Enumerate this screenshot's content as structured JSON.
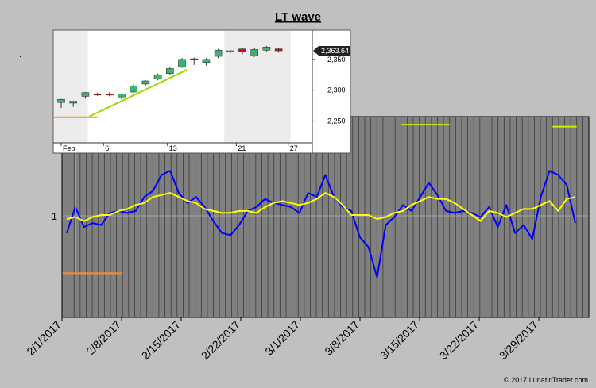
{
  "chart_data": [
    {
      "type": "line",
      "title": "LT wave",
      "x_tick_labels": [
        "2/1/2017",
        "2/8/2017",
        "2/15/2017",
        "2/22/2017",
        "3/1/2017",
        "3/8/2017",
        "3/15/2017",
        "3/22/2017",
        "3/29/2017"
      ],
      "y_tick_labels": [
        "1"
      ],
      "series": [
        {
          "color": "#0000ff",
          "values": [
            0.42,
            0.55,
            0.45,
            0.47,
            0.46,
            0.52,
            0.53,
            0.52,
            0.53,
            0.6,
            0.63,
            0.71,
            0.73,
            0.62,
            0.57,
            0.6,
            0.55,
            0.48,
            0.42,
            0.41,
            0.46,
            0.53,
            0.55,
            0.59,
            0.57,
            0.56,
            0.55,
            0.52,
            0.62,
            0.6,
            0.71,
            0.6,
            0.55,
            0.53,
            0.4,
            0.35,
            0.2,
            0.46,
            0.5,
            0.56,
            0.53,
            0.6,
            0.67,
            0.61,
            0.53,
            0.52,
            0.53,
            0.52,
            0.5,
            0.55,
            0.45,
            0.56,
            0.42,
            0.46,
            0.39,
            0.6,
            0.73,
            0.71,
            0.66,
            0.47
          ]
        },
        {
          "color": "#ffff00",
          "values": [
            0.49,
            0.5,
            0.48,
            0.5,
            0.51,
            0.51,
            0.53,
            0.54,
            0.56,
            0.57,
            0.6,
            0.61,
            0.62,
            0.6,
            0.58,
            0.57,
            0.54,
            0.53,
            0.52,
            0.52,
            0.53,
            0.53,
            0.52,
            0.55,
            0.57,
            0.58,
            0.57,
            0.56,
            0.57,
            0.59,
            0.62,
            0.6,
            0.56,
            0.51,
            0.51,
            0.51,
            0.49,
            0.5,
            0.52,
            0.53,
            0.56,
            0.58,
            0.6,
            0.59,
            0.59,
            0.57,
            0.54,
            0.51,
            0.48,
            0.53,
            0.52,
            0.5,
            0.52,
            0.54,
            0.54,
            0.56,
            0.58,
            0.53,
            0.59,
            0.6
          ]
        }
      ],
      "annotations": [
        {
          "kind": "hline",
          "color": "#ccee00",
          "x_start": 12,
          "x_end": 23,
          "y": 0.9
        },
        {
          "kind": "hline",
          "color": "#ccee00",
          "x_start": 36,
          "x_end": 42,
          "y": 0.91
        },
        {
          "kind": "hline",
          "color": "#ccee00",
          "x_start": 56,
          "x_end": 64,
          "y": 0.96
        },
        {
          "kind": "hline",
          "color": "#ccee00",
          "x_start": 81,
          "x_end": 85,
          "y": 0.95
        },
        {
          "kind": "hline",
          "color": "#ff8c2a",
          "x_start": 0,
          "x_end": 10,
          "y": 0.22
        },
        {
          "kind": "hline",
          "color": "#e6c000",
          "x_start": 43,
          "x_end": 54,
          "y": 0.0
        },
        {
          "kind": "hline",
          "color": "#e6c000",
          "x_start": 62,
          "x_end": 78,
          "y": 0.0
        }
      ],
      "grid": true,
      "background": "#808080"
    },
    {
      "type": "candlestick",
      "x_tick_labels": [
        "Feb",
        "6",
        "13",
        "21",
        "27"
      ],
      "y_tick_labels": [
        "2,350",
        "2,300",
        "2,250"
      ],
      "ylim": [
        2217,
        2395
      ],
      "last_price_label": "2,363.64",
      "up_color": "#3cb371",
      "down_color": "#dd1111",
      "candles": [
        {
          "open": 2280,
          "high": 2286,
          "low": 2271,
          "close": 2285
        },
        {
          "open": 2279,
          "high": 2282,
          "low": 2273,
          "close": 2282
        },
        {
          "open": 2290,
          "high": 2297,
          "low": 2286,
          "close": 2296
        },
        {
          "open": 2294,
          "high": 2296,
          "low": 2291,
          "close": 2293
        },
        {
          "open": 2294,
          "high": 2297,
          "low": 2290,
          "close": 2292
        },
        {
          "open": 2289,
          "high": 2295,
          "low": 2285,
          "close": 2294
        },
        {
          "open": 2297,
          "high": 2310,
          "low": 2295,
          "close": 2307
        },
        {
          "open": 2310,
          "high": 2316,
          "low": 2308,
          "close": 2315
        },
        {
          "open": 2318,
          "high": 2327,
          "low": 2316,
          "close": 2325
        },
        {
          "open": 2327,
          "high": 2337,
          "low": 2325,
          "close": 2335
        },
        {
          "open": 2338,
          "high": 2352,
          "low": 2336,
          "close": 2350
        },
        {
          "open": 2351,
          "high": 2353,
          "low": 2341,
          "close": 2349
        },
        {
          "open": 2345,
          "high": 2352,
          "low": 2340,
          "close": 2350
        },
        {
          "open": 2355,
          "high": 2367,
          "low": 2352,
          "close": 2365
        },
        {
          "open": 2362,
          "high": 2365,
          "low": 2360,
          "close": 2364
        },
        {
          "open": 2367,
          "high": 2369,
          "low": 2358,
          "close": 2363
        },
        {
          "open": 2356,
          "high": 2368,
          "low": 2354,
          "close": 2366
        },
        {
          "open": 2365,
          "high": 2372,
          "low": 2363,
          "close": 2370
        },
        {
          "open": 2367,
          "high": 2369,
          "low": 2361,
          "close": 2364
        }
      ],
      "annotations": [
        {
          "kind": "trendline",
          "color": "#99dd00",
          "from": {
            "x": 2.3,
            "y": 2257
          },
          "to": {
            "x": 10.4,
            "y": 2333
          }
        },
        {
          "kind": "hline",
          "color": "#ff8c2a",
          "x_start": -1,
          "x_end": 3,
          "y": 2256
        }
      ],
      "shading": [
        {
          "x_start": -1,
          "x_end": 2.2,
          "color": "#e0e0e0"
        },
        {
          "x_start": 13.5,
          "x_end": 19,
          "color": "#e0e0e0"
        }
      ]
    }
  ],
  "footer": {
    "copyright": "© 2017 LunaticTrader.com"
  },
  "extra": {
    "dot": "."
  }
}
